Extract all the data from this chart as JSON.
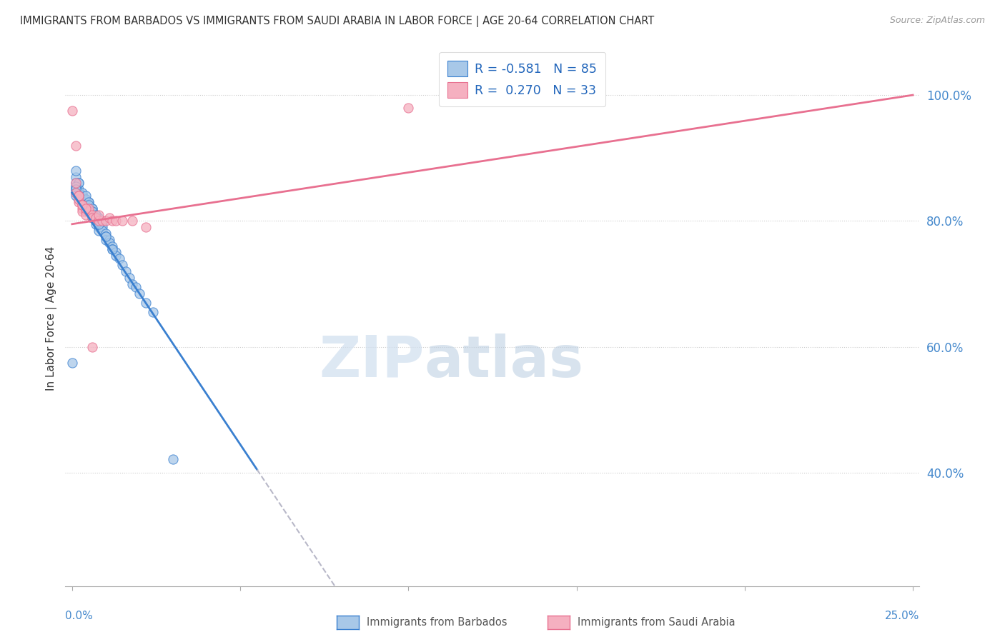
{
  "title": "IMMIGRANTS FROM BARBADOS VS IMMIGRANTS FROM SAUDI ARABIA IN LABOR FORCE | AGE 20-64 CORRELATION CHART",
  "source": "Source: ZipAtlas.com",
  "ylabel": "In Labor Force | Age 20-64",
  "ylabel_right_ticks": [
    "40.0%",
    "60.0%",
    "80.0%",
    "100.0%"
  ],
  "ylabel_right_values": [
    0.4,
    0.6,
    0.8,
    1.0
  ],
  "legend_label1": "R = -0.581   N = 85",
  "legend_label2": "R =  0.270   N = 33",
  "color_blue": "#a8c8e8",
  "color_pink": "#f5b0c0",
  "color_blue_line": "#3a80d0",
  "color_pink_line": "#e87090",
  "color_grey_line": "#b8b8c8",
  "watermark_zip": "ZIP",
  "watermark_atlas": "atlas",
  "xlim": [
    0.0,
    0.25
  ],
  "ylim": [
    0.22,
    1.07
  ],
  "blue_line_x0": 0.0,
  "blue_line_y0": 0.845,
  "blue_line_x1": 0.055,
  "blue_line_y1": 0.405,
  "blue_line_ext_x1": 0.13,
  "blue_line_ext_y1": 0.22,
  "pink_line_x0": 0.0,
  "pink_line_y0": 0.795,
  "pink_line_x1": 0.25,
  "pink_line_y1": 1.0,
  "barbados_x": [
    0.0,
    0.001,
    0.001,
    0.001,
    0.001,
    0.002,
    0.002,
    0.002,
    0.002,
    0.002,
    0.003,
    0.003,
    0.003,
    0.003,
    0.003,
    0.003,
    0.004,
    0.004,
    0.004,
    0.004,
    0.005,
    0.005,
    0.005,
    0.005,
    0.005,
    0.006,
    0.006,
    0.006,
    0.006,
    0.006,
    0.007,
    0.007,
    0.007,
    0.007,
    0.008,
    0.008,
    0.008,
    0.008,
    0.008,
    0.009,
    0.009,
    0.009,
    0.01,
    0.01,
    0.01,
    0.011,
    0.011,
    0.012,
    0.012,
    0.013,
    0.013,
    0.014,
    0.015,
    0.016,
    0.017,
    0.018,
    0.019,
    0.02,
    0.022,
    0.024,
    0.001,
    0.001,
    0.002,
    0.002,
    0.003,
    0.003,
    0.004,
    0.004,
    0.005,
    0.005,
    0.006,
    0.006,
    0.007,
    0.007,
    0.008,
    0.008,
    0.01,
    0.012,
    0.001,
    0.001,
    0.001,
    0.002,
    0.03,
    0.001,
    0.001
  ],
  "barbados_y": [
    0.575,
    0.845,
    0.85,
    0.855,
    0.87,
    0.845,
    0.85,
    0.835,
    0.84,
    0.86,
    0.83,
    0.835,
    0.84,
    0.83,
    0.835,
    0.84,
    0.83,
    0.835,
    0.83,
    0.825,
    0.825,
    0.83,
    0.825,
    0.82,
    0.815,
    0.82,
    0.815,
    0.815,
    0.81,
    0.805,
    0.81,
    0.805,
    0.8,
    0.795,
    0.805,
    0.8,
    0.795,
    0.79,
    0.785,
    0.795,
    0.79,
    0.785,
    0.78,
    0.775,
    0.77,
    0.77,
    0.765,
    0.76,
    0.755,
    0.75,
    0.745,
    0.74,
    0.73,
    0.72,
    0.71,
    0.7,
    0.695,
    0.685,
    0.67,
    0.655,
    0.85,
    0.86,
    0.845,
    0.86,
    0.84,
    0.845,
    0.835,
    0.84,
    0.83,
    0.825,
    0.82,
    0.815,
    0.81,
    0.805,
    0.8,
    0.795,
    0.775,
    0.755,
    0.855,
    0.85,
    0.845,
    0.84,
    0.422,
    0.88,
    0.84
  ],
  "saudi_x": [
    0.0,
    0.001,
    0.001,
    0.001,
    0.002,
    0.002,
    0.002,
    0.003,
    0.003,
    0.003,
    0.004,
    0.004,
    0.004,
    0.005,
    0.005,
    0.006,
    0.006,
    0.007,
    0.008,
    0.009,
    0.01,
    0.011,
    0.012,
    0.013,
    0.015,
    0.018,
    0.022,
    0.1,
    0.002,
    0.003,
    0.004,
    0.006,
    0.008
  ],
  "saudi_y": [
    0.975,
    0.845,
    0.86,
    0.92,
    0.83,
    0.835,
    0.84,
    0.82,
    0.815,
    0.825,
    0.82,
    0.815,
    0.81,
    0.815,
    0.82,
    0.81,
    0.805,
    0.805,
    0.8,
    0.8,
    0.8,
    0.805,
    0.8,
    0.8,
    0.8,
    0.8,
    0.79,
    0.98,
    0.84,
    0.825,
    0.82,
    0.6,
    0.81
  ],
  "footer_label1": "Immigrants from Barbados",
  "footer_label2": "Immigrants from Saudi Arabia"
}
